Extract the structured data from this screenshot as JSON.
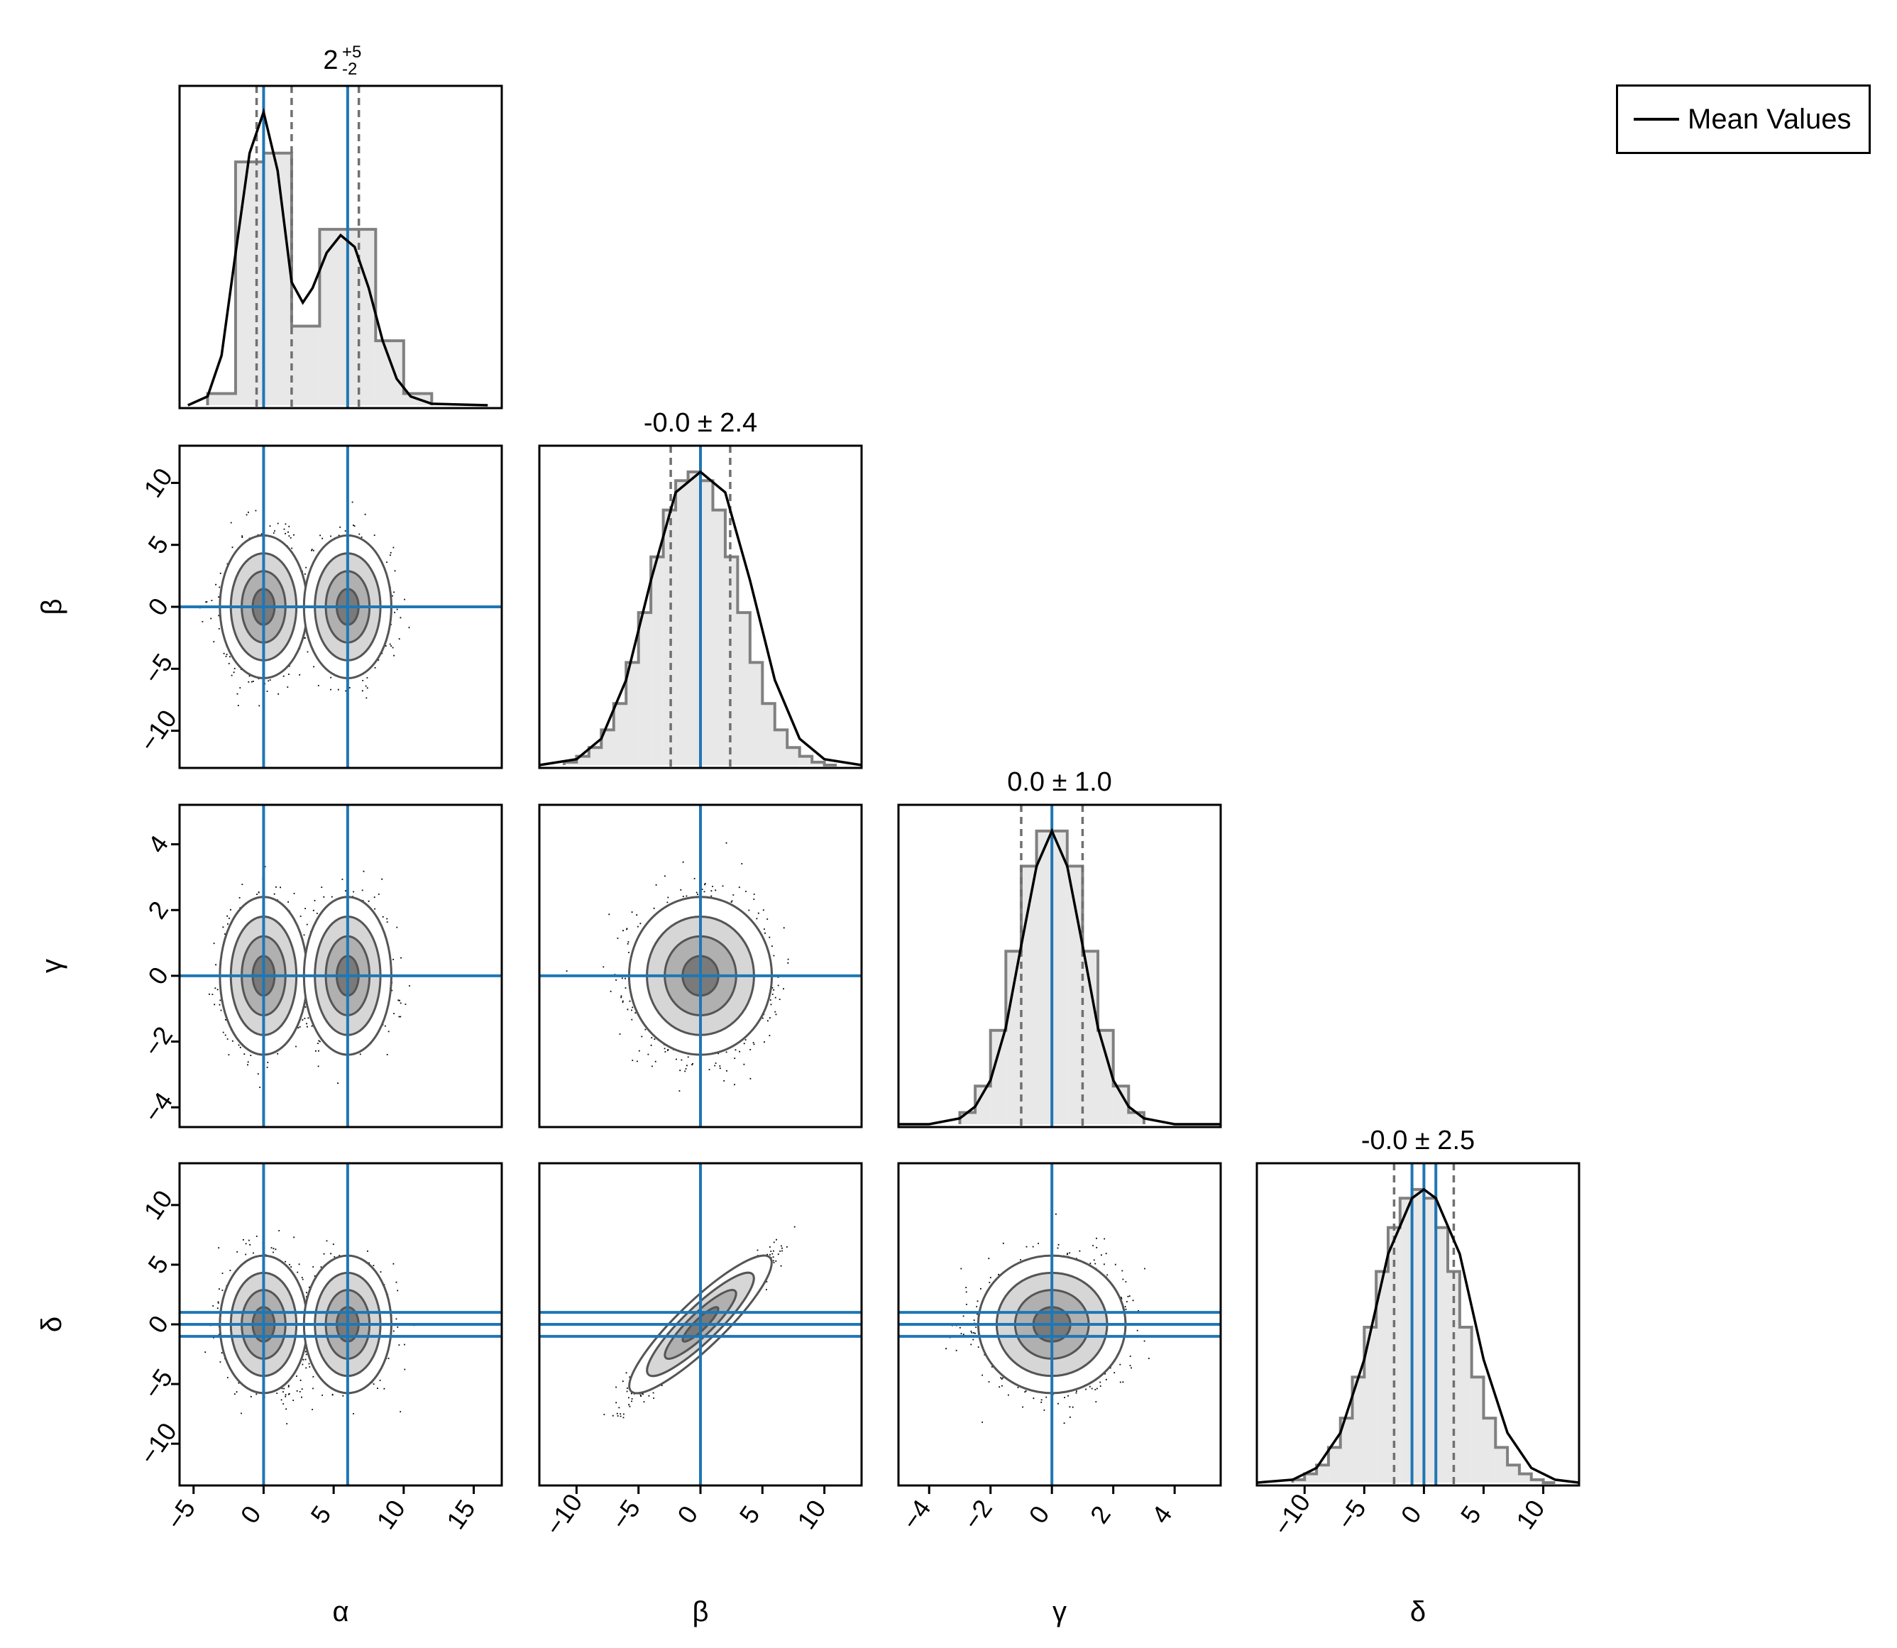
{
  "chart_data": {
    "type": "corner",
    "parameters": [
      "α",
      "β",
      "γ",
      "δ"
    ],
    "colors": {
      "truth_line": "#1f77b4",
      "kde_line": "#000000",
      "hist_edge": "#808080",
      "hist_fill": "#e8e8e8",
      "quantile_line": "#707070",
      "scatter": "#000000"
    },
    "legend": {
      "label": "Mean Values",
      "placement": "top-right"
    },
    "diagonal": [
      {
        "param": "α",
        "title_base": "2",
        "title_sup": "+5",
        "title_sub": "-2",
        "xlim": [
          -6,
          17
        ],
        "quantiles": [
          -0.5,
          2,
          6.8
        ],
        "truth_lines": [
          0,
          6
        ],
        "hist_edges": [
          -4,
          -2,
          0,
          2,
          4,
          6,
          8,
          10,
          12
        ],
        "hist_counts": [
          0.04,
          0.83,
          0.86,
          0.27,
          0.6,
          0.6,
          0.22,
          0.04
        ],
        "kde": [
          [
            -5.4,
            0.0
          ],
          [
            -4,
            0.03
          ],
          [
            -3,
            0.17
          ],
          [
            -2,
            0.52
          ],
          [
            -1,
            0.86
          ],
          [
            0,
            1.0
          ],
          [
            1,
            0.8
          ],
          [
            2,
            0.42
          ],
          [
            2.8,
            0.35
          ],
          [
            3.5,
            0.4
          ],
          [
            4.5,
            0.52
          ],
          [
            5.5,
            0.58
          ],
          [
            6.5,
            0.54
          ],
          [
            7.5,
            0.4
          ],
          [
            8.5,
            0.22
          ],
          [
            9.5,
            0.09
          ],
          [
            10.5,
            0.03
          ],
          [
            12,
            0.005
          ],
          [
            16,
            0.0
          ]
        ]
      },
      {
        "param": "β",
        "title": "-0.0 ± 2.4",
        "xlim": [
          -13,
          13
        ],
        "quantiles": [
          -2.4,
          2.4
        ],
        "truth_lines": [
          0
        ],
        "hist_edges": [
          -11,
          -10,
          -9,
          -8,
          -7,
          -6,
          -5,
          -4,
          -3,
          -2,
          -1,
          0,
          1,
          2,
          3,
          4,
          5,
          6,
          7,
          8,
          9,
          10,
          11
        ],
        "hist_counts": [
          0.01,
          0.03,
          0.06,
          0.12,
          0.21,
          0.35,
          0.52,
          0.71,
          0.87,
          0.97,
          1.0,
          0.97,
          0.87,
          0.71,
          0.52,
          0.35,
          0.21,
          0.12,
          0.06,
          0.03,
          0.01,
          0.0
        ],
        "kde": [
          [
            -13,
            0.0
          ],
          [
            -10,
            0.02
          ],
          [
            -8,
            0.09
          ],
          [
            -6,
            0.29
          ],
          [
            -4,
            0.63
          ],
          [
            -2,
            0.93
          ],
          [
            0,
            1.0
          ],
          [
            2,
            0.93
          ],
          [
            4,
            0.63
          ],
          [
            6,
            0.29
          ],
          [
            8,
            0.09
          ],
          [
            10,
            0.02
          ],
          [
            13,
            0.0
          ]
        ]
      },
      {
        "param": "γ",
        "title": "0.0 ± 1.0",
        "xlim": [
          -5,
          5.5
        ],
        "quantiles": [
          -1.0,
          1.0
        ],
        "truth_lines": [
          0
        ],
        "hist_edges": [
          -3.0,
          -2.5,
          -2.0,
          -1.5,
          -1.0,
          -0.5,
          0.0,
          0.5,
          1.0,
          1.5,
          2.0,
          2.5,
          3.0
        ],
        "hist_counts": [
          0.04,
          0.13,
          0.32,
          0.59,
          0.88,
          1.0,
          1.0,
          0.88,
          0.59,
          0.32,
          0.13,
          0.04
        ],
        "kde": [
          [
            -5,
            0.0
          ],
          [
            -4,
            0.0
          ],
          [
            -3,
            0.02
          ],
          [
            -2.5,
            0.06
          ],
          [
            -2,
            0.15
          ],
          [
            -1.5,
            0.33
          ],
          [
            -1,
            0.61
          ],
          [
            -0.5,
            0.88
          ],
          [
            0,
            1.0
          ],
          [
            0.5,
            0.88
          ],
          [
            1,
            0.61
          ],
          [
            1.5,
            0.33
          ],
          [
            2,
            0.15
          ],
          [
            2.5,
            0.06
          ],
          [
            3,
            0.02
          ],
          [
            4,
            0.0
          ],
          [
            5.5,
            0.0
          ]
        ]
      },
      {
        "param": "δ",
        "title": "-0.0 ± 2.5",
        "xlim": [
          -14,
          13
        ],
        "quantiles": [
          -2.5,
          2.5
        ],
        "truth_lines": [
          -1,
          0,
          1
        ],
        "hist_edges": [
          -11,
          -10,
          -9,
          -8,
          -7,
          -6,
          -5,
          -4,
          -3,
          -2,
          -1,
          0,
          1,
          2,
          3,
          4,
          5,
          6,
          7,
          8,
          9,
          10,
          11
        ],
        "hist_counts": [
          0.01,
          0.03,
          0.06,
          0.12,
          0.22,
          0.36,
          0.53,
          0.72,
          0.87,
          0.97,
          1.0,
          0.97,
          0.87,
          0.72,
          0.53,
          0.36,
          0.22,
          0.12,
          0.06,
          0.03,
          0.01,
          0.0
        ],
        "kde": [
          [
            -14,
            0.0
          ],
          [
            -11,
            0.01
          ],
          [
            -9,
            0.05
          ],
          [
            -7,
            0.17
          ],
          [
            -5,
            0.42
          ],
          [
            -3,
            0.78
          ],
          [
            -1,
            0.97
          ],
          [
            0,
            1.0
          ],
          [
            1,
            0.97
          ],
          [
            3,
            0.78
          ],
          [
            5,
            0.42
          ],
          [
            7,
            0.17
          ],
          [
            9,
            0.05
          ],
          [
            11,
            0.01
          ],
          [
            13,
            0.0
          ]
        ]
      }
    ],
    "axes": {
      "α": {
        "lim": [
          -6,
          17
        ],
        "ticks": [
          -5,
          0,
          5,
          10,
          15
        ],
        "tick_labels": [
          "−5",
          "0",
          "5",
          "10",
          "15"
        ]
      },
      "β": {
        "lim": [
          -13,
          13
        ],
        "ticks": [
          -10,
          -5,
          0,
          5,
          10
        ],
        "tick_labels": [
          "−10",
          "−5",
          "0",
          "5",
          "10"
        ]
      },
      "γ": {
        "lim": [
          -4.6,
          5.2
        ],
        "xlim": [
          -5,
          5.5
        ],
        "ticks": [
          -4,
          -2,
          0,
          2,
          4
        ],
        "tick_labels": [
          "−4",
          "−2",
          "0",
          "2",
          "4"
        ]
      },
      "δ": {
        "lim": [
          -13.5,
          13.5
        ],
        "xlim": [
          -14,
          13
        ],
        "ticks": [
          -10,
          -5,
          0,
          5,
          10
        ],
        "tick_labels": [
          "−10",
          "−5",
          "0",
          "5",
          "10"
        ]
      }
    },
    "offdiagonal": [
      {
        "x": "α",
        "y": "β",
        "truth_x": [
          0,
          6
        ],
        "truth_y": [
          0
        ]
      },
      {
        "x": "α",
        "y": "γ",
        "truth_x": [
          0,
          6
        ],
        "truth_y": [
          0
        ]
      },
      {
        "x": "α",
        "y": "δ",
        "truth_x": [
          0,
          6
        ],
        "truth_y": [
          -1,
          0,
          1
        ]
      },
      {
        "x": "β",
        "y": "γ",
        "truth_x": [
          0
        ],
        "truth_y": [
          0
        ]
      },
      {
        "x": "β",
        "y": "δ",
        "truth_x": [
          0
        ],
        "truth_y": [
          -1,
          0,
          1
        ]
      },
      {
        "x": "γ",
        "y": "δ",
        "truth_x": [
          0
        ],
        "truth_y": [
          -1,
          0,
          1
        ]
      }
    ]
  }
}
